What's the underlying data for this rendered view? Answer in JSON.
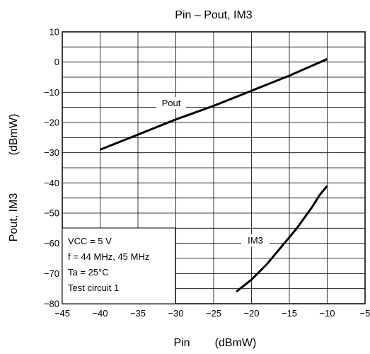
{
  "chart_data": {
    "type": "line",
    "title": "Pin – Pout, IM3",
    "xlabel": "Pin",
    "xunit": "(dBmW)",
    "ylabel": "Pout, IM3",
    "yunit": "(dBmW)",
    "xlim": [
      -45,
      -5
    ],
    "ylim": [
      -80,
      10
    ],
    "x_ticks": [
      -45,
      -40,
      -35,
      -30,
      -25,
      -20,
      -15,
      -10,
      -5
    ],
    "x_tick_labels": [
      "−45",
      "−40",
      "−35",
      "−30",
      "−25",
      "−20",
      "−15",
      "−10",
      "−5"
    ],
    "y_ticks": [
      10,
      0,
      -10,
      -20,
      -30,
      -40,
      -50,
      -60,
      -70,
      -80
    ],
    "y_tick_labels": [
      "10",
      "0",
      "−10",
      "−20",
      "−30",
      "−40",
      "−50",
      "−60",
      "−70",
      "−80"
    ],
    "grid": true,
    "series": [
      {
        "name": "Pout",
        "x": [
          -40,
          -35,
          -30,
          -25,
          -20,
          -15,
          -10
        ],
        "y": [
          -29,
          -24,
          -19,
          -14.5,
          -9.5,
          -4.5,
          1
        ],
        "color": "#000000"
      },
      {
        "name": "IM3",
        "x": [
          -22,
          -20,
          -18,
          -16,
          -14,
          -12,
          -11,
          -10
        ],
        "y": [
          -76,
          -72,
          -67,
          -61,
          -55,
          -48,
          -44,
          -41
        ],
        "color": "#000000"
      }
    ],
    "annotations": [
      "VCC = 5 V",
      "f = 44 MHz, 45 MHz",
      "Ta = 25°C",
      "Test circuit 1"
    ]
  }
}
